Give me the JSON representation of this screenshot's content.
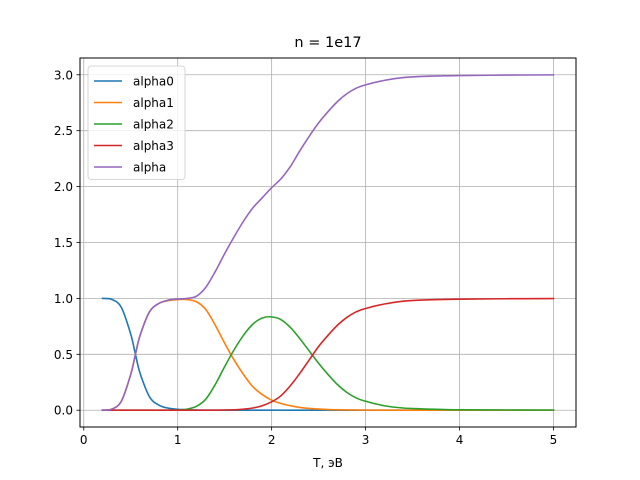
{
  "chart_data": {
    "type": "line",
    "title": "n = 1e17",
    "xlabel": "T, эВ",
    "ylabel": "",
    "xlim": [
      -0.04,
      5.24
    ],
    "ylim": [
      -0.15,
      3.15
    ],
    "xticks": [
      0,
      1,
      2,
      3,
      4,
      5
    ],
    "yticks": [
      0.0,
      0.5,
      1.0,
      1.5,
      2.0,
      2.5,
      3.0
    ],
    "xtick_labels": [
      "0",
      "1",
      "2",
      "3",
      "4",
      "5"
    ],
    "ytick_labels": [
      "0.0",
      "0.5",
      "1.0",
      "1.5",
      "2.0",
      "2.5",
      "3.0"
    ],
    "grid": true,
    "legend_position": "upper-left",
    "x": [
      0.2,
      0.3,
      0.4,
      0.5,
      0.55,
      0.6,
      0.7,
      0.8,
      0.9,
      1.0,
      1.1,
      1.2,
      1.3,
      1.4,
      1.5,
      1.6,
      1.7,
      1.8,
      1.9,
      2.0,
      2.1,
      2.2,
      2.3,
      2.4,
      2.5,
      2.6,
      2.7,
      2.8,
      2.9,
      3.0,
      3.2,
      3.4,
      3.6,
      3.8,
      4.0,
      4.5,
      5.0
    ],
    "series": [
      {
        "name": "alpha0",
        "color": "#1f77b4",
        "values": [
          1.0,
          0.99,
          0.92,
          0.68,
          0.5,
          0.33,
          0.12,
          0.045,
          0.018,
          0.008,
          0.004,
          0.002,
          0.001,
          0.0,
          0.0,
          0.0,
          0.0,
          0.0,
          0.0,
          0.0,
          0.0,
          0.0,
          0.0,
          0.0,
          0.0,
          0.0,
          0.0,
          0.0,
          0.0,
          0.0,
          0.0,
          0.0,
          0.0,
          0.0,
          0.0,
          0.0,
          0.0
        ]
      },
      {
        "name": "alpha1",
        "color": "#ff7f0e",
        "values": [
          0.0,
          0.01,
          0.08,
          0.32,
          0.5,
          0.67,
          0.88,
          0.955,
          0.98,
          0.99,
          0.99,
          0.97,
          0.9,
          0.76,
          0.6,
          0.45,
          0.32,
          0.21,
          0.14,
          0.09,
          0.06,
          0.04,
          0.025,
          0.016,
          0.01,
          0.006,
          0.004,
          0.003,
          0.002,
          0.001,
          0.0,
          0.0,
          0.0,
          0.0,
          0.0,
          0.0,
          0.0
        ]
      },
      {
        "name": "alpha2",
        "color": "#2ca02c",
        "values": [
          0.0,
          0.0,
          0.0,
          0.0,
          0.0,
          0.0,
          0.0,
          0.0,
          0.001,
          0.003,
          0.01,
          0.035,
          0.1,
          0.23,
          0.39,
          0.54,
          0.67,
          0.77,
          0.825,
          0.835,
          0.81,
          0.74,
          0.64,
          0.53,
          0.42,
          0.32,
          0.23,
          0.16,
          0.11,
          0.08,
          0.04,
          0.02,
          0.012,
          0.007,
          0.004,
          0.002,
          0.001
        ]
      },
      {
        "name": "alpha3",
        "color": "#d62728",
        "values": [
          0.0,
          0.0,
          0.0,
          0.0,
          0.0,
          0.0,
          0.0,
          0.0,
          0.0,
          0.0,
          0.0,
          0.0,
          0.0,
          0.001,
          0.002,
          0.004,
          0.01,
          0.02,
          0.04,
          0.075,
          0.13,
          0.22,
          0.33,
          0.45,
          0.57,
          0.67,
          0.76,
          0.83,
          0.88,
          0.91,
          0.95,
          0.975,
          0.985,
          0.99,
          0.993,
          0.997,
          0.999
        ]
      },
      {
        "name": "alpha",
        "color": "#9467bd",
        "values": [
          0.0,
          0.01,
          0.08,
          0.32,
          0.5,
          0.67,
          0.88,
          0.955,
          0.985,
          0.995,
          1.0,
          1.02,
          1.1,
          1.24,
          1.4,
          1.55,
          1.69,
          1.81,
          1.9,
          1.99,
          2.07,
          2.18,
          2.32,
          2.45,
          2.57,
          2.67,
          2.76,
          2.83,
          2.88,
          2.91,
          2.95,
          2.975,
          2.985,
          2.99,
          2.993,
          2.997,
          2.999
        ]
      }
    ]
  }
}
